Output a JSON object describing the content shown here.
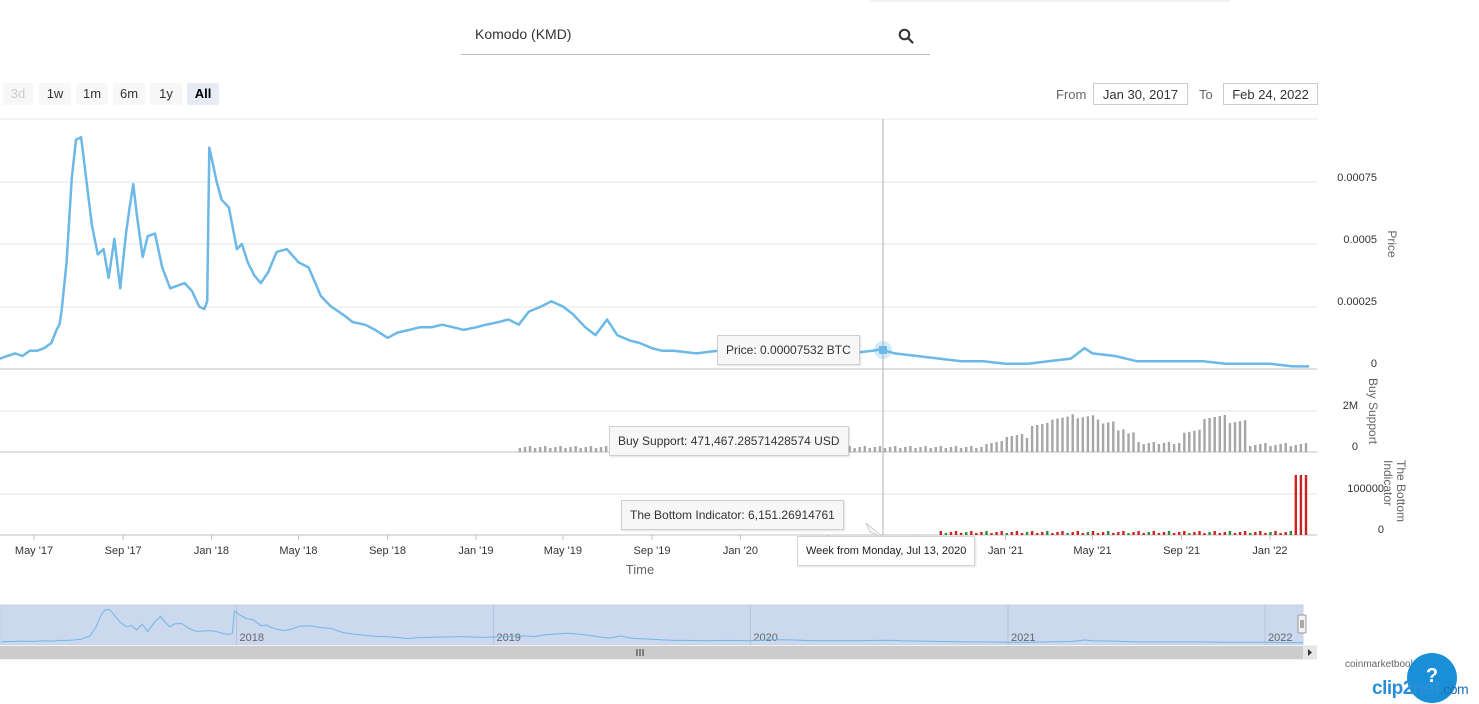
{
  "search": {
    "value": "Komodo (KMD)",
    "icon": "search-icon"
  },
  "range_buttons": [
    {
      "label": "3d",
      "state": "disabled"
    },
    {
      "label": "1w",
      "state": "normal"
    },
    {
      "label": "1m",
      "state": "normal"
    },
    {
      "label": "6m",
      "state": "normal"
    },
    {
      "label": "1y",
      "state": "normal"
    },
    {
      "label": "All",
      "state": "active"
    }
  ],
  "date_range": {
    "from_label": "From",
    "from_value": "Jan 30, 2017",
    "to_label": "To",
    "to_value": "Feb 24, 2022"
  },
  "chart_data": {
    "type": "line",
    "xlabel": "Time",
    "x_ticks": [
      "May '17",
      "Sep '17",
      "Jan '18",
      "May '18",
      "Sep '18",
      "Jan '19",
      "May '19",
      "Sep '19",
      "Jan '20",
      "May '20",
      "Sep '20",
      "Jan '21",
      "May '21",
      "Sep '21",
      "Jan '22"
    ],
    "price_axis": {
      "title": "Price",
      "unit": "BTC",
      "ticks": [
        "0",
        "0.00025",
        "0.0005",
        "0.00075"
      ],
      "ylim": [
        0,
        0.00096
      ]
    },
    "buy_axis": {
      "title": "Buy Support",
      "ticks": [
        "0",
        "2M"
      ],
      "ylim": [
        0,
        2000000
      ]
    },
    "bottom_axis": {
      "title": "The Bottom Indicator",
      "ticks": [
        "0",
        "100000"
      ],
      "ylim": [
        0,
        200000
      ]
    },
    "series": [
      {
        "name": "Price",
        "color": "#6cb8e6",
        "x": [
          "2017-02-01",
          "2017-02-15",
          "2017-03-01",
          "2017-03-15",
          "2017-03-25",
          "2017-04-05",
          "2017-04-15",
          "2017-04-25",
          "2017-05-05",
          "2017-05-15",
          "2017-05-25",
          "2017-06-01",
          "2017-06-05",
          "2017-06-08",
          "2017-06-15",
          "2017-06-22",
          "2017-06-28",
          "2017-07-05",
          "2017-07-12",
          "2017-07-20",
          "2017-07-28",
          "2017-08-05",
          "2017-08-12",
          "2017-08-20",
          "2017-08-28",
          "2017-09-05",
          "2017-09-10",
          "2017-09-15",
          "2017-09-20",
          "2017-09-28",
          "2017-10-05",
          "2017-10-15",
          "2017-10-25",
          "2017-11-05",
          "2017-11-15",
          "2017-11-25",
          "2017-12-05",
          "2017-12-15",
          "2017-12-22",
          "2017-12-26",
          "2017-12-29",
          "2018-01-02",
          "2018-01-08",
          "2018-01-15",
          "2018-01-25",
          "2018-02-05",
          "2018-02-12",
          "2018-02-20",
          "2018-03-01",
          "2018-03-10",
          "2018-03-20",
          "2018-04-01",
          "2018-04-15",
          "2018-05-01",
          "2018-05-15",
          "2018-06-01",
          "2018-06-15",
          "2018-07-01",
          "2018-07-15",
          "2018-08-01",
          "2018-08-15",
          "2018-09-01",
          "2018-09-15",
          "2018-10-01",
          "2018-10-15",
          "2018-11-01",
          "2018-11-15",
          "2018-12-01",
          "2018-12-15",
          "2019-01-01",
          "2019-01-15",
          "2019-02-01",
          "2019-02-15",
          "2019-03-01",
          "2019-03-15",
          "2019-04-01",
          "2019-04-15",
          "2019-05-01",
          "2019-05-15",
          "2019-06-01",
          "2019-06-15",
          "2019-07-01",
          "2019-07-15",
          "2019-08-01",
          "2019-08-15",
          "2019-09-01",
          "2019-09-15",
          "2019-10-01",
          "2019-11-01",
          "2019-12-01",
          "2020-01-01",
          "2020-02-01",
          "2020-03-01",
          "2020-04-01",
          "2020-05-01",
          "2020-06-01",
          "2020-07-01",
          "2020-07-13",
          "2020-08-01",
          "2020-09-01",
          "2020-10-01",
          "2020-11-01",
          "2020-12-01",
          "2021-01-01",
          "2021-02-01",
          "2021-03-01",
          "2021-04-01",
          "2021-04-20",
          "2021-05-01",
          "2021-06-01",
          "2021-07-01",
          "2021-08-01",
          "2021-09-01",
          "2021-10-01",
          "2021-11-01",
          "2021-12-01",
          "2022-01-01",
          "2022-02-01",
          "2022-02-24"
        ],
        "values": [
          3e-05,
          4e-05,
          5e-05,
          4e-05,
          5e-05,
          6e-05,
          5e-05,
          7e-05,
          7e-05,
          8e-05,
          0.0001,
          0.00015,
          0.00017,
          0.00022,
          0.00041,
          0.00073,
          0.00088,
          0.00089,
          0.00073,
          0.00055,
          0.00044,
          0.00046,
          0.00035,
          0.0005,
          0.00031,
          0.00052,
          0.00062,
          0.00071,
          0.00059,
          0.00043,
          0.00051,
          0.00052,
          0.00039,
          0.00031,
          0.00032,
          0.00033,
          0.0003,
          0.00024,
          0.00023,
          0.00026,
          0.00085,
          0.0008,
          0.00072,
          0.00065,
          0.00062,
          0.00046,
          0.00048,
          0.00041,
          0.00036,
          0.00033,
          0.00037,
          0.00045,
          0.00046,
          0.00041,
          0.00039,
          0.00028,
          0.00024,
          0.00021,
          0.00018,
          0.00017,
          0.00015,
          0.00012,
          0.00014,
          0.00015,
          0.00016,
          0.00016,
          0.00017,
          0.00016,
          0.00015,
          0.00016,
          0.00017,
          0.00018,
          0.00019,
          0.00017,
          0.00022,
          0.00024,
          0.00026,
          0.00024,
          0.00021,
          0.00016,
          0.00013,
          0.00019,
          0.00013,
          0.00011,
          0.0001,
          8e-05,
          7e-05,
          7e-05,
          6e-05,
          7e-05,
          6e-05,
          9e-05,
          8e-05,
          6e-05,
          6e-05,
          6e-05,
          7e-05,
          7.53e-05,
          6e-05,
          5e-05,
          4e-05,
          3e-05,
          3e-05,
          2e-05,
          2e-05,
          3e-05,
          4e-05,
          8e-05,
          6e-05,
          5e-05,
          3e-05,
          3e-05,
          3e-05,
          3e-05,
          2e-05,
          2e-05,
          2e-05,
          1e-05,
          1e-05
        ]
      },
      {
        "name": "Buy Support",
        "unit": "USD",
        "color": "#a6a6a6",
        "hovered_value": 471467.28571428574
      },
      {
        "name": "The Bottom Indicator",
        "color_up": "#2e8b3a",
        "color_down": "#cc2222",
        "hovered_value": 6151.26914761,
        "peak_value": 145000
      }
    ]
  },
  "tooltip": {
    "price": "Price: 0.00007532 BTC",
    "buy_support": "Buy Support: 471,467.28571428574 USD",
    "bottom_indicator": "The Bottom Indicator: 6,151.26914761",
    "date": "Week from Monday, Jul 13, 2020"
  },
  "navigator": {
    "year_labels": [
      "2018",
      "2019",
      "2020",
      "2021",
      "2022"
    ]
  },
  "credits": {
    "source": "coinmarketbook",
    "watermark": "clip2net",
    "watermark_tld": ".com",
    "help_label": "?"
  }
}
